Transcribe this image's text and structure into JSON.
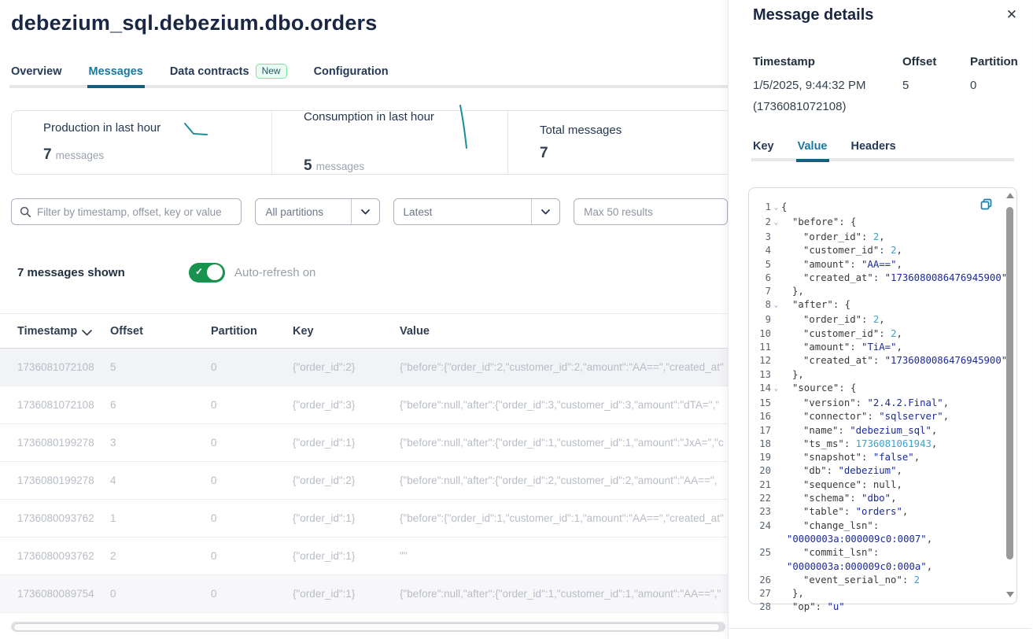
{
  "page": {
    "title": "debezium_sql.debezium.dbo.orders"
  },
  "main_tabs": {
    "overview": "Overview",
    "messages": "Messages",
    "data_contracts": "Data contracts",
    "data_contracts_badge": "New",
    "configuration": "Configuration"
  },
  "stats": {
    "production": {
      "label": "Production in last hour",
      "value": "7",
      "unit": "messages"
    },
    "consumption": {
      "label": "Consumption in last hour",
      "value": "5",
      "unit": "messages"
    },
    "total": {
      "label": "Total messages",
      "value": "7"
    }
  },
  "filters": {
    "search_placeholder": "Filter by timestamp, offset, key or value",
    "partitions": "All partitions",
    "from": "Latest",
    "max_results": "Max 50 results"
  },
  "toolbar": {
    "count": "7 messages shown",
    "autorefresh": "Auto-refresh on"
  },
  "table": {
    "columns": [
      "Timestamp",
      "Offset",
      "Partition",
      "Key",
      "Value"
    ],
    "rows": [
      {
        "ts": "1736081072108",
        "offset": "5",
        "partition": "0",
        "key": "{\"order_id\":2}",
        "value": "{\"before\":{\"order_id\":2,\"customer_id\":2,\"amount\":\"AA==\",\"created_at\"",
        "selected": true
      },
      {
        "ts": "1736081072108",
        "offset": "6",
        "partition": "0",
        "key": "{\"order_id\":3}",
        "value": "{\"before\":null,\"after\":{\"order_id\":3,\"customer_id\":3,\"amount\":\"dTA=\",\""
      },
      {
        "ts": "1736080199278",
        "offset": "3",
        "partition": "0",
        "key": "{\"order_id\":1}",
        "value": "{\"before\":null,\"after\":{\"order_id\":1,\"customer_id\":1,\"amount\":\"JxA=\",\"c"
      },
      {
        "ts": "1736080199278",
        "offset": "4",
        "partition": "0",
        "key": "{\"order_id\":2}",
        "value": "{\"before\":null,\"after\":{\"order_id\":2,\"customer_id\":2,\"amount\":\"AA==\","
      },
      {
        "ts": "1736080093762",
        "offset": "1",
        "partition": "0",
        "key": "{\"order_id\":1}",
        "value": "{\"before\":{\"order_id\":1,\"customer_id\":1,\"amount\":\"AA==\",\"created_at\""
      },
      {
        "ts": "1736080093762",
        "offset": "2",
        "partition": "0",
        "key": "{\"order_id\":1}",
        "value": "\"\""
      },
      {
        "ts": "1736080089754",
        "offset": "0",
        "partition": "0",
        "key": "{\"order_id\":1}",
        "value": "{\"before\":null,\"after\":{\"order_id\":1,\"customer_id\":1,\"amount\":\"AA==\",\"",
        "shade": true
      }
    ]
  },
  "details": {
    "title": "Message details",
    "close": "✕",
    "meta": {
      "timestamp_label": "Timestamp",
      "offset_label": "Offset",
      "partition_label": "Partition",
      "timestamp_value": "1/5/2025, 9:44:32 PM",
      "timestamp_epoch": "(1736081072108)",
      "offset_value": "5",
      "partition_value": "0"
    },
    "tabs": {
      "key": "Key",
      "value": "Value",
      "headers": "Headers"
    },
    "code": {
      "lines": [
        {
          "n": "1",
          "fold": true,
          "ind": 0,
          "t": [
            [
              "p",
              "{"
            ]
          ]
        },
        {
          "n": "2",
          "fold": true,
          "ind": 1,
          "t": [
            [
              "k",
              "\"before\""
            ],
            [
              "p",
              ": {"
            ]
          ]
        },
        {
          "n": "3",
          "ind": 2,
          "t": [
            [
              "k",
              "\"order_id\""
            ],
            [
              "p",
              ": "
            ],
            [
              "n",
              "2"
            ],
            [
              "p",
              ","
            ]
          ]
        },
        {
          "n": "4",
          "ind": 2,
          "t": [
            [
              "k",
              "\"customer_id\""
            ],
            [
              "p",
              ": "
            ],
            [
              "n",
              "2"
            ],
            [
              "p",
              ","
            ]
          ]
        },
        {
          "n": "5",
          "ind": 2,
          "t": [
            [
              "k",
              "\"amount\""
            ],
            [
              "p",
              ": "
            ],
            [
              "s",
              "\"AA==\""
            ],
            [
              "p",
              ","
            ]
          ]
        },
        {
          "n": "6",
          "ind": 2,
          "t": [
            [
              "k",
              "\"created_at\""
            ],
            [
              "p",
              ": "
            ],
            [
              "s",
              "\"1736080086476945900\""
            ]
          ]
        },
        {
          "n": "7",
          "ind": 1,
          "t": [
            [
              "p",
              "},"
            ]
          ]
        },
        {
          "n": "8",
          "fold": true,
          "ind": 1,
          "t": [
            [
              "k",
              "\"after\""
            ],
            [
              "p",
              ": {"
            ]
          ]
        },
        {
          "n": "9",
          "ind": 2,
          "t": [
            [
              "k",
              "\"order_id\""
            ],
            [
              "p",
              ": "
            ],
            [
              "n",
              "2"
            ],
            [
              "p",
              ","
            ]
          ]
        },
        {
          "n": "10",
          "ind": 2,
          "t": [
            [
              "k",
              "\"customer_id\""
            ],
            [
              "p",
              ": "
            ],
            [
              "n",
              "2"
            ],
            [
              "p",
              ","
            ]
          ]
        },
        {
          "n": "11",
          "ind": 2,
          "t": [
            [
              "k",
              "\"amount\""
            ],
            [
              "p",
              ": "
            ],
            [
              "s",
              "\"TiA=\""
            ],
            [
              "p",
              ","
            ]
          ]
        },
        {
          "n": "12",
          "ind": 2,
          "t": [
            [
              "k",
              "\"created_at\""
            ],
            [
              "p",
              ": "
            ],
            [
              "s",
              "\"1736080086476945900\""
            ]
          ]
        },
        {
          "n": "13",
          "ind": 1,
          "t": [
            [
              "p",
              "},"
            ]
          ]
        },
        {
          "n": "14",
          "fold": true,
          "ind": 1,
          "t": [
            [
              "k",
              "\"source\""
            ],
            [
              "p",
              ": {"
            ]
          ]
        },
        {
          "n": "15",
          "ind": 2,
          "t": [
            [
              "k",
              "\"version\""
            ],
            [
              "p",
              ": "
            ],
            [
              "s",
              "\"2.4.2.Final\""
            ],
            [
              "p",
              ","
            ]
          ]
        },
        {
          "n": "16",
          "ind": 2,
          "t": [
            [
              "k",
              "\"connector\""
            ],
            [
              "p",
              ": "
            ],
            [
              "s",
              "\"sqlserver\""
            ],
            [
              "p",
              ","
            ]
          ]
        },
        {
          "n": "17",
          "ind": 2,
          "t": [
            [
              "k",
              "\"name\""
            ],
            [
              "p",
              ": "
            ],
            [
              "s",
              "\"debezium_sql\""
            ],
            [
              "p",
              ","
            ]
          ]
        },
        {
          "n": "18",
          "ind": 2,
          "t": [
            [
              "k",
              "\"ts_ms\""
            ],
            [
              "p",
              ": "
            ],
            [
              "n",
              "1736081061943"
            ],
            [
              "p",
              ","
            ]
          ]
        },
        {
          "n": "19",
          "ind": 2,
          "t": [
            [
              "k",
              "\"snapshot\""
            ],
            [
              "p",
              ": "
            ],
            [
              "s",
              "\"false\""
            ],
            [
              "p",
              ","
            ]
          ]
        },
        {
          "n": "20",
          "ind": 2,
          "t": [
            [
              "k",
              "\"db\""
            ],
            [
              "p",
              ": "
            ],
            [
              "s",
              "\"debezium\""
            ],
            [
              "p",
              ","
            ]
          ]
        },
        {
          "n": "21",
          "ind": 2,
          "t": [
            [
              "k",
              "\"sequence\""
            ],
            [
              "p",
              ": "
            ],
            [
              "p",
              "null"
            ],
            [
              "p",
              ","
            ]
          ]
        },
        {
          "n": "22",
          "ind": 2,
          "t": [
            [
              "k",
              "\"schema\""
            ],
            [
              "p",
              ": "
            ],
            [
              "s",
              "\"dbo\""
            ],
            [
              "p",
              ","
            ]
          ]
        },
        {
          "n": "23",
          "ind": 2,
          "t": [
            [
              "k",
              "\"table\""
            ],
            [
              "p",
              ": "
            ],
            [
              "s",
              "\"orders\""
            ],
            [
              "p",
              ","
            ]
          ]
        },
        {
          "n": "24",
          "ind": 2,
          "t": [
            [
              "k",
              "\"change_lsn\""
            ],
            [
              "p",
              ":"
            ]
          ]
        },
        {
          "n": "",
          "wrap": true,
          "ind": 0,
          "t": [
            [
              "s",
              "\"0000003a:000009c0:0007\""
            ],
            [
              "p",
              ","
            ]
          ]
        },
        {
          "n": "25",
          "ind": 2,
          "t": [
            [
              "k",
              "\"commit_lsn\""
            ],
            [
              "p",
              ":"
            ]
          ]
        },
        {
          "n": "",
          "wrap": true,
          "ind": 0,
          "t": [
            [
              "s",
              "\"0000003a:000009c0:000a\""
            ],
            [
              "p",
              ","
            ]
          ]
        },
        {
          "n": "26",
          "ind": 2,
          "t": [
            [
              "k",
              "\"event_serial_no\""
            ],
            [
              "p",
              ": "
            ],
            [
              "n",
              "2"
            ]
          ]
        },
        {
          "n": "27",
          "ind": 1,
          "t": [
            [
              "p",
              "},"
            ]
          ]
        },
        {
          "n": "28",
          "ind": 1,
          "t": [
            [
              "k",
              "\"op\""
            ],
            [
              "p",
              ": "
            ],
            [
              "s",
              "\"u\""
            ]
          ]
        }
      ]
    }
  }
}
